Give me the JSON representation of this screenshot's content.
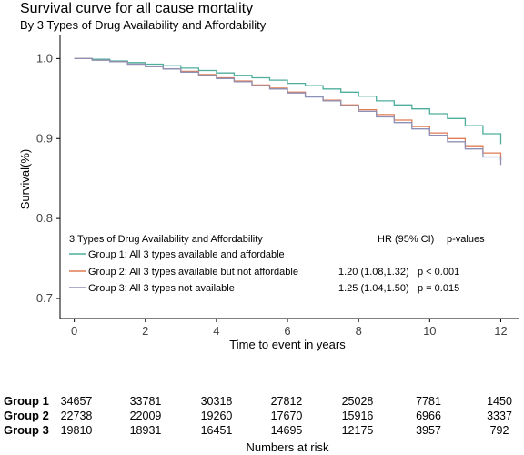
{
  "chart_data": {
    "type": "line",
    "title": "Survival curve for all cause mortality",
    "subtitle": "By 3 Types of Drug Availability and Affordability",
    "xlabel": "Time to event in years",
    "ylabel": "Survival(%)",
    "xlim": [
      -0.4,
      12.5
    ],
    "ylim": [
      0.675,
      1.03
    ],
    "x_ticks": [
      0,
      2,
      4,
      6,
      8,
      10,
      12
    ],
    "y_ticks": [
      0.7,
      0.8,
      0.9,
      1.0
    ],
    "y_tick_labels": [
      "0.7",
      "0.8",
      "0.9",
      "1.0"
    ],
    "grid": false,
    "legend": {
      "title": "3 Types of Drug Availability and Affordability",
      "position": "bottom-left"
    },
    "hr_header": "HR (95% CI)",
    "p_header": "p-values",
    "series": [
      {
        "name": "Group 1: All 3 types available and affordable",
        "color": "#4dae9b",
        "hr": "",
        "p": "",
        "x": [
          0,
          0.5,
          1,
          1.5,
          2,
          2.5,
          3,
          3.5,
          4,
          4.5,
          5,
          5.5,
          6,
          6.5,
          7,
          7.5,
          8,
          8.5,
          9,
          9.5,
          10,
          10.5,
          11,
          11.5,
          12
        ],
        "y": [
          1.0,
          0.999,
          0.997,
          0.995,
          0.993,
          0.991,
          0.988,
          0.985,
          0.982,
          0.979,
          0.976,
          0.973,
          0.969,
          0.966,
          0.962,
          0.958,
          0.953,
          0.947,
          0.942,
          0.937,
          0.931,
          0.925,
          0.916,
          0.906,
          0.893
        ]
      },
      {
        "name": "Group 2: All 3 types available but not affordable",
        "color": "#e07b54",
        "hr": "1.20 (1.08,1.32)",
        "p": "p < 0.001",
        "x": [
          0,
          0.5,
          1,
          1.5,
          2,
          2.5,
          3,
          3.5,
          4,
          4.5,
          5,
          5.5,
          6,
          6.5,
          7,
          7.5,
          8,
          8.5,
          9,
          9.5,
          10,
          10.5,
          11,
          11.5,
          12
        ],
        "y": [
          1.0,
          0.998,
          0.996,
          0.993,
          0.99,
          0.987,
          0.984,
          0.98,
          0.976,
          0.972,
          0.967,
          0.963,
          0.958,
          0.953,
          0.948,
          0.942,
          0.936,
          0.93,
          0.923,
          0.915,
          0.907,
          0.9,
          0.891,
          0.882,
          0.873
        ]
      },
      {
        "name": "Group 3: All 3 types not available",
        "color": "#8d91b8",
        "hr": "1.25 (1.04,1.50)",
        "p": "p = 0.015",
        "x": [
          0,
          0.5,
          1,
          1.5,
          2,
          2.5,
          3,
          3.5,
          4,
          4.5,
          5,
          5.5,
          6,
          6.5,
          7,
          7.5,
          8,
          8.5,
          9,
          9.5,
          10,
          10.5,
          11,
          11.5,
          12
        ],
        "y": [
          1.0,
          0.998,
          0.996,
          0.993,
          0.99,
          0.987,
          0.983,
          0.979,
          0.975,
          0.971,
          0.966,
          0.962,
          0.957,
          0.952,
          0.947,
          0.941,
          0.934,
          0.927,
          0.92,
          0.912,
          0.904,
          0.896,
          0.887,
          0.877,
          0.867
        ]
      }
    ],
    "risk_table": {
      "title": "Numbers at risk",
      "rows": [
        {
          "label": "Group 1",
          "values": [
            "34657",
            "33781",
            "30318",
            "27812",
            "25028",
            "7781",
            "1450"
          ]
        },
        {
          "label": "Group 2",
          "values": [
            "22738",
            "22009",
            "19260",
            "17670",
            "15916",
            "6966",
            "3337"
          ]
        },
        {
          "label": "Group 3",
          "values": [
            "19810",
            "18931",
            "16451",
            "14695",
            "12175",
            "3957",
            "792"
          ]
        }
      ]
    }
  }
}
